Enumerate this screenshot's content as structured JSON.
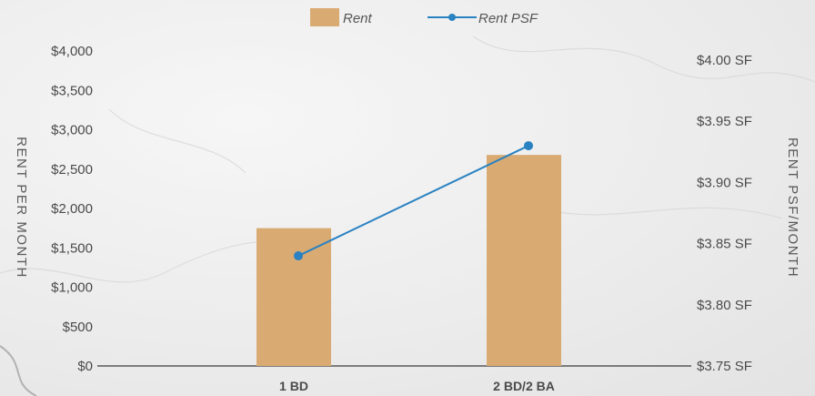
{
  "chart_data": {
    "type": "bar",
    "categories": [
      "1 BD",
      "2 BD/2 BA"
    ],
    "series": [
      {
        "name": "Rent",
        "type": "bar",
        "axis": "left",
        "values": [
          1750,
          2680
        ],
        "color": "#d9ab72"
      },
      {
        "name": "Rent PSF",
        "type": "line",
        "axis": "right",
        "values": [
          3.84,
          3.93
        ],
        "color": "#2a82c2"
      }
    ],
    "y_left": {
      "label": "RENT PER MONTH",
      "ylim": [
        0,
        4000
      ],
      "ticks": [
        0,
        500,
        1000,
        1500,
        2000,
        2500,
        3000,
        3500,
        4000
      ],
      "tick_labels": [
        "$0",
        "$500",
        "$1,000",
        "$1,500",
        "$2,000",
        "$2,500",
        "$3,000",
        "$3,500",
        "$4,000"
      ]
    },
    "y_right": {
      "label": "RENT PSF/MONTH",
      "ylim": [
        3.75,
        4.0
      ],
      "ticks": [
        3.75,
        3.8,
        3.85,
        3.9,
        3.95,
        4.0
      ],
      "tick_labels": [
        "$3.75 SF",
        "$3.80 SF",
        "$3.85 SF",
        "$3.90 SF",
        "$3.95 SF",
        "$4.00 SF"
      ]
    },
    "legend": {
      "position": "top-center",
      "items": [
        "Rent",
        "Rent PSF"
      ]
    },
    "grid": false,
    "title": "",
    "xlabel": ""
  }
}
